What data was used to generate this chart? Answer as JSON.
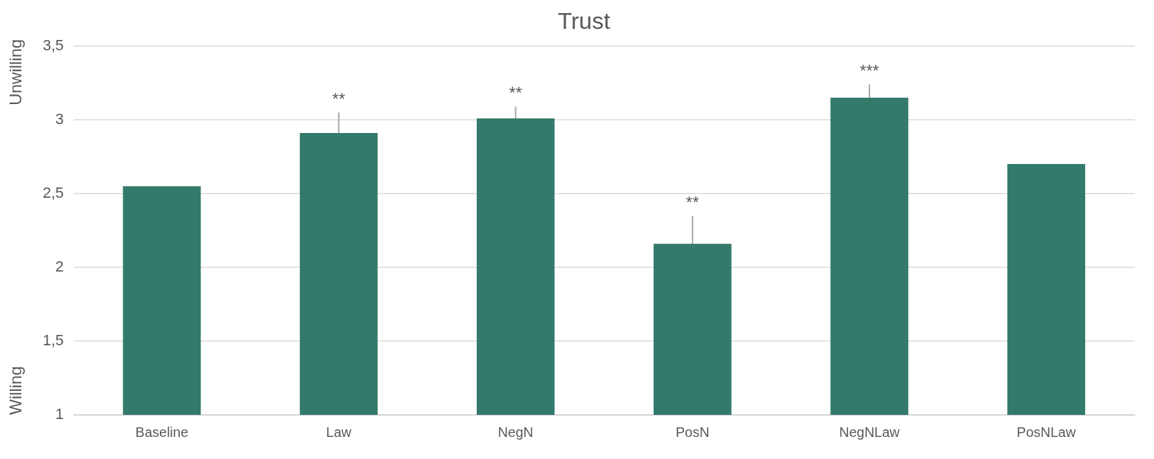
{
  "chart_data": {
    "type": "bar",
    "title": "Trust",
    "categories": [
      "Baseline",
      "Law",
      "NegN",
      "PosN",
      "NegNLaw",
      "PosNLaw"
    ],
    "values": [
      2.55,
      2.91,
      3.01,
      2.16,
      3.15,
      2.7
    ],
    "errors": [
      null,
      0.14,
      0.08,
      0.19,
      0.09,
      null
    ],
    "color": "#337a6b",
    "ylim": [
      1,
      3.5
    ],
    "yticks": [
      1,
      {
        "value": 1.5,
        "label": "1,5"
      },
      2,
      {
        "value": 2.5,
        "label": "2,5"
      },
      3,
      {
        "value": 3.5,
        "label": "3,5"
      }
    ],
    "grid": "y",
    "legend": false,
    "annotations": [
      "Unwilling",
      "Willing",
      {
        "text": "**",
        "x": "Law",
        "y": 3.05
      },
      {
        "text": "**",
        "x": "NegN",
        "y": 3.09
      },
      {
        "text": "**",
        "x": "PosN",
        "y": 2.35
      },
      {
        "text": "***",
        "x": "NegNLaw",
        "y": 3.24
      }
    ]
  }
}
